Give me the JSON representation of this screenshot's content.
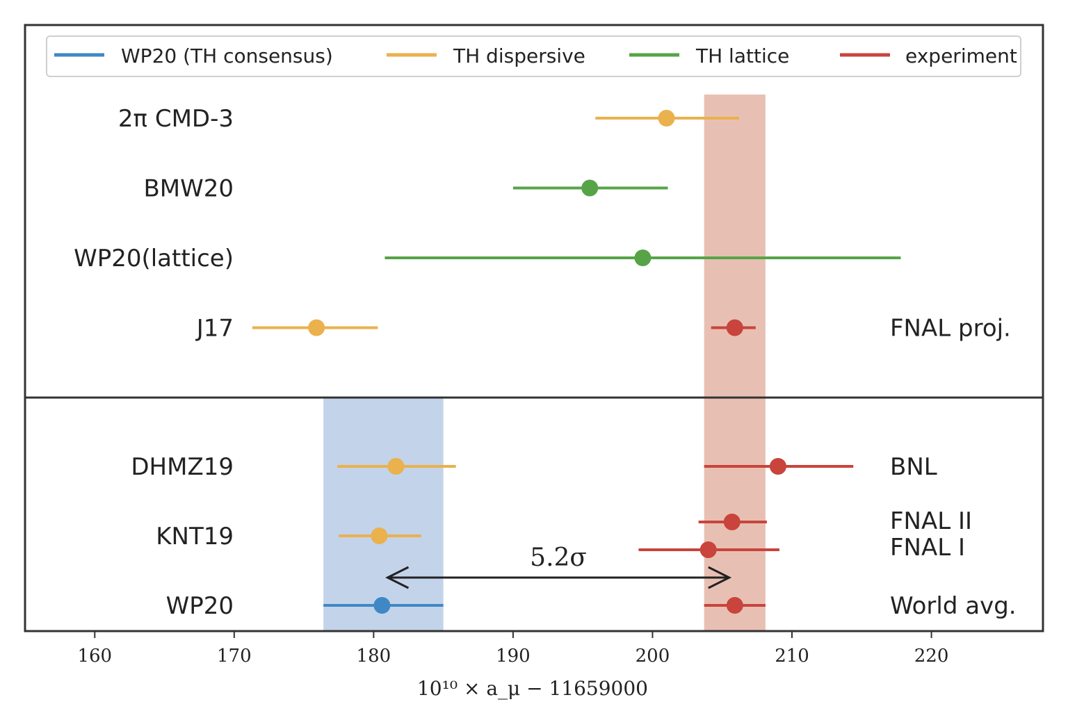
{
  "chart_data": {
    "type": "errorbar",
    "xlabel": "10¹⁰ × a_μ − 11659000",
    "xlim": [
      155,
      228
    ],
    "xticks": [
      160,
      170,
      180,
      190,
      200,
      210,
      220
    ],
    "grid": false,
    "legend": {
      "placement": "top",
      "entries": [
        {
          "name": "WP20 (TH consensus)",
          "color": "#3f88c5"
        },
        {
          "name": "TH dispersive",
          "color": "#eab14d"
        },
        {
          "name": "TH lattice",
          "color": "#56a447"
        },
        {
          "name": "experiment",
          "color": "#c8443c"
        }
      ]
    },
    "bands": [
      {
        "name": "WP20 band",
        "xmin": 176.4,
        "xmax": 185.0,
        "color": "#c3d3ea",
        "extent": "lower"
      },
      {
        "name": "experiment band",
        "xmin": 203.7,
        "xmax": 208.1,
        "color": "#e8c0b3",
        "extent": "full"
      }
    ],
    "upper_panel": {
      "rows": [
        {
          "label": "2π CMD-3",
          "center": 201.0,
          "lo": 195.9,
          "hi": 206.2,
          "group": "TH dispersive"
        },
        {
          "label": "BMW20",
          "center": 195.5,
          "lo": 190.0,
          "hi": 201.1,
          "group": "TH lattice"
        },
        {
          "label": "WP20(lattice)",
          "center": 199.3,
          "lo": 180.8,
          "hi": 217.8,
          "group": "TH lattice"
        },
        {
          "label": "J17",
          "center": 175.9,
          "lo": 171.3,
          "hi": 180.3,
          "group": "TH dispersive"
        }
      ],
      "experiments": [
        {
          "label": "FNAL proj.",
          "row": 3,
          "center": 205.9,
          "lo": 204.2,
          "hi": 207.4
        }
      ]
    },
    "lower_panel": {
      "rows": [
        {
          "label": "DHMZ19",
          "center": 181.6,
          "lo": 177.4,
          "hi": 185.9,
          "group": "TH dispersive"
        },
        {
          "label": "KNT19",
          "center": 180.4,
          "lo": 177.5,
          "hi": 183.4,
          "group": "TH dispersive"
        },
        {
          "label": "WP20",
          "center": 180.6,
          "lo": 176.4,
          "hi": 185.0,
          "group": "WP20 (TH consensus)"
        }
      ],
      "experiments": [
        {
          "label": "BNL",
          "pos": 0.0,
          "center": 209.0,
          "lo": 203.7,
          "hi": 214.4
        },
        {
          "label": "FNAL II",
          "pos": 0.8,
          "center": 205.7,
          "lo": 203.3,
          "hi": 208.2
        },
        {
          "label": "FNAL I",
          "pos": 1.2,
          "center": 204.0,
          "lo": 199.0,
          "hi": 209.1
        },
        {
          "label": "World avg.",
          "pos": 2.0,
          "center": 205.9,
          "lo": 203.7,
          "hi": 208.1
        }
      ]
    },
    "annotation": {
      "text": "5.2σ",
      "x_from": 181.0,
      "x_to": 205.5
    }
  }
}
